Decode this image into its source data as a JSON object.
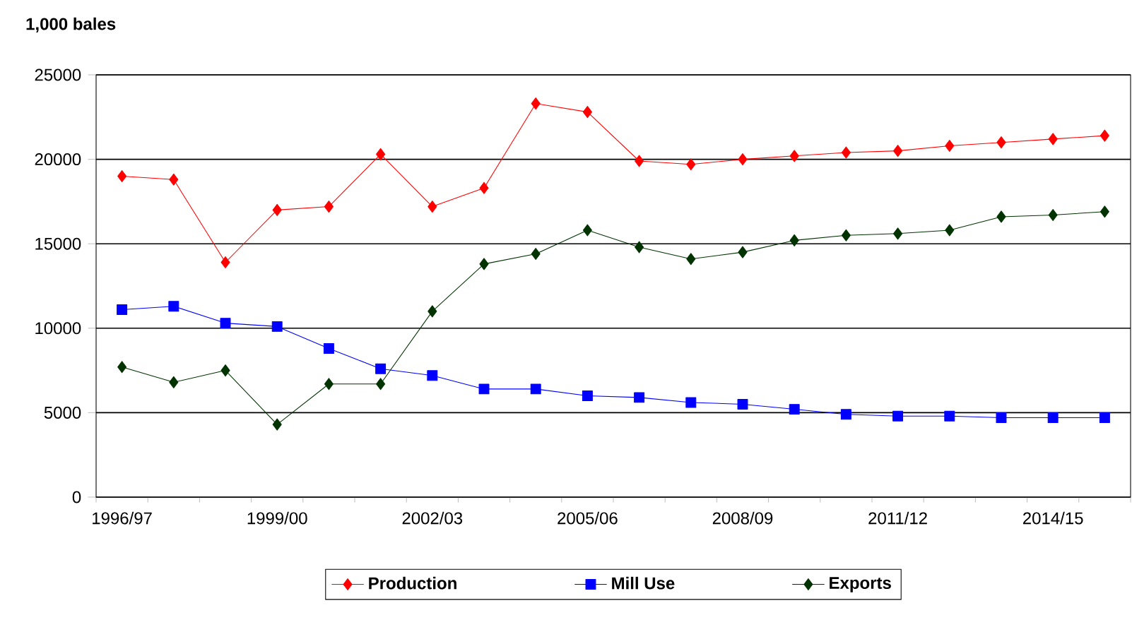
{
  "chart_data": {
    "type": "line",
    "ylabel": "1,000 bales",
    "categories": [
      "1996/97",
      null,
      null,
      "1999/00",
      null,
      null,
      "2002/03",
      null,
      null,
      "2005/06",
      null,
      null,
      "2008/09",
      null,
      null,
      "2011/12",
      null,
      null,
      "2014/15",
      null
    ],
    "series": [
      {
        "name": "Production",
        "color": "#ff0000",
        "marker": "diamond",
        "values": [
          19000,
          18800,
          13900,
          17000,
          17200,
          20300,
          17200,
          18300,
          23300,
          22800,
          19900,
          19700,
          20000,
          20200,
          20400,
          20500,
          20800,
          21000,
          21200,
          21400
        ]
      },
      {
        "name": "Mill Use",
        "color": "#0000ff",
        "marker": "square",
        "values": [
          11100,
          11300,
          10300,
          10100,
          8800,
          7600,
          7200,
          6400,
          6400,
          6000,
          5900,
          5600,
          5500,
          5200,
          4900,
          4800,
          4800,
          4700,
          4700,
          4700
        ]
      },
      {
        "name": "Exports",
        "color": "#003300",
        "marker": "diamond",
        "values": [
          7700,
          6800,
          7500,
          4300,
          6700,
          6700,
          11000,
          13800,
          14400,
          15800,
          14800,
          14100,
          14500,
          15200,
          15500,
          15600,
          15800,
          16600,
          16700,
          16900
        ]
      }
    ],
    "ylim": [
      0,
      25000
    ],
    "yticks": [
      0,
      5000,
      10000,
      15000,
      20000,
      25000
    ],
    "grid": "y",
    "legend": "bottom",
    "line_style": "solid"
  }
}
